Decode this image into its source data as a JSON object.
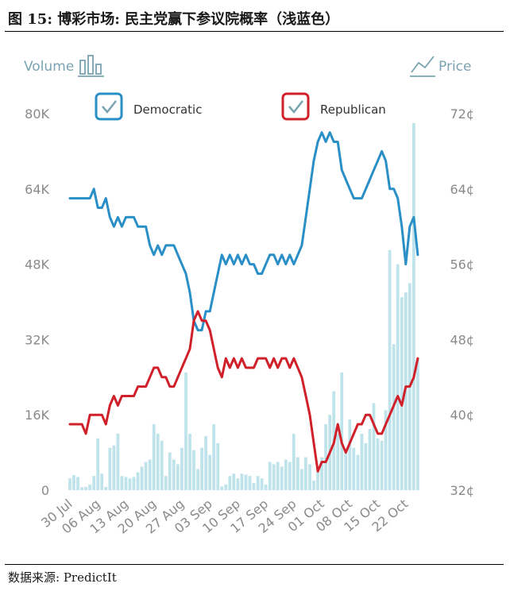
{
  "figure": {
    "title": "图 15: 博彩市场: 民主党赢下参议院概率（浅蓝色）",
    "source": "数据来源: PredictIt"
  },
  "header": {
    "volume_label": "Volume",
    "price_label": "Price",
    "volume_icon": "bar-chart-icon",
    "price_icon": "line-chart-icon"
  },
  "colors": {
    "democratic": "#2a8fc6",
    "republican": "#d0202a",
    "volume": "#bfe3ea",
    "axis_text": "#8a8a8a"
  },
  "chart_data": {
    "type": "line",
    "x_ticks": [
      "30 Jul",
      "06 Aug",
      "13 Aug",
      "20 Aug",
      "27 Aug",
      "03 Sep",
      "10 Sep",
      "17 Sep",
      "24 Sep",
      "01 Oct",
      "08 Oct",
      "15 Oct",
      "22 Oct"
    ],
    "x_range": [
      "2018-07-30",
      "2018-10-28"
    ],
    "y_left": {
      "label": "Volume",
      "ticks": [
        "0",
        "16K",
        "32K",
        "48K",
        "64K",
        "80K"
      ],
      "range": [
        0,
        80000
      ]
    },
    "y_right": {
      "label": "Price",
      "ticks": [
        "32¢",
        "40¢",
        "48¢",
        "56¢",
        "64¢",
        "72¢"
      ],
      "range": [
        32,
        72
      ]
    },
    "legend": [
      "Democratic",
      "Republican"
    ],
    "series": [
      {
        "name": "Democratic",
        "axis": "right",
        "points": [
          [
            "2018-07-30",
            63
          ],
          [
            "2018-07-31",
            63
          ],
          [
            "2018-08-01",
            63
          ],
          [
            "2018-08-02",
            63
          ],
          [
            "2018-08-03",
            63
          ],
          [
            "2018-08-04",
            63
          ],
          [
            "2018-08-05",
            64
          ],
          [
            "2018-08-06",
            62
          ],
          [
            "2018-08-07",
            62
          ],
          [
            "2018-08-08",
            63
          ],
          [
            "2018-08-09",
            61
          ],
          [
            "2018-08-10",
            60
          ],
          [
            "2018-08-11",
            61
          ],
          [
            "2018-08-12",
            60
          ],
          [
            "2018-08-13",
            61
          ],
          [
            "2018-08-14",
            61
          ],
          [
            "2018-08-15",
            61
          ],
          [
            "2018-08-16",
            60
          ],
          [
            "2018-08-17",
            60
          ],
          [
            "2018-08-18",
            60
          ],
          [
            "2018-08-19",
            58
          ],
          [
            "2018-08-20",
            57
          ],
          [
            "2018-08-21",
            58
          ],
          [
            "2018-08-22",
            57
          ],
          [
            "2018-08-23",
            58
          ],
          [
            "2018-08-24",
            58
          ],
          [
            "2018-08-25",
            58
          ],
          [
            "2018-08-26",
            57
          ],
          [
            "2018-08-27",
            56
          ],
          [
            "2018-08-28",
            55
          ],
          [
            "2018-08-29",
            53
          ],
          [
            "2018-08-30",
            50
          ],
          [
            "2018-08-31",
            49
          ],
          [
            "2018-09-01",
            49
          ],
          [
            "2018-09-02",
            51
          ],
          [
            "2018-09-03",
            51
          ],
          [
            "2018-09-04",
            53
          ],
          [
            "2018-09-05",
            55
          ],
          [
            "2018-09-06",
            57
          ],
          [
            "2018-09-07",
            56
          ],
          [
            "2018-09-08",
            57
          ],
          [
            "2018-09-09",
            56
          ],
          [
            "2018-09-10",
            57
          ],
          [
            "2018-09-11",
            56
          ],
          [
            "2018-09-12",
            57
          ],
          [
            "2018-09-13",
            56
          ],
          [
            "2018-09-14",
            56
          ],
          [
            "2018-09-15",
            55
          ],
          [
            "2018-09-16",
            55
          ],
          [
            "2018-09-17",
            56
          ],
          [
            "2018-09-18",
            57
          ],
          [
            "2018-09-19",
            57
          ],
          [
            "2018-09-20",
            56
          ],
          [
            "2018-09-21",
            57
          ],
          [
            "2018-09-22",
            56
          ],
          [
            "2018-09-23",
            57
          ],
          [
            "2018-09-24",
            56
          ],
          [
            "2018-09-25",
            57
          ],
          [
            "2018-09-26",
            58
          ],
          [
            "2018-09-27",
            61
          ],
          [
            "2018-09-28",
            64
          ],
          [
            "2018-09-29",
            67
          ],
          [
            "2018-09-30",
            69
          ],
          [
            "2018-10-01",
            70
          ],
          [
            "2018-10-02",
            69
          ],
          [
            "2018-10-03",
            70
          ],
          [
            "2018-10-04",
            69
          ],
          [
            "2018-10-05",
            69
          ],
          [
            "2018-10-06",
            66
          ],
          [
            "2018-10-07",
            65
          ],
          [
            "2018-10-08",
            64
          ],
          [
            "2018-10-09",
            63
          ],
          [
            "2018-10-10",
            63
          ],
          [
            "2018-10-11",
            63
          ],
          [
            "2018-10-12",
            64
          ],
          [
            "2018-10-13",
            65
          ],
          [
            "2018-10-14",
            66
          ],
          [
            "2018-10-15",
            67
          ],
          [
            "2018-10-16",
            68
          ],
          [
            "2018-10-17",
            67
          ],
          [
            "2018-10-18",
            64
          ],
          [
            "2018-10-19",
            64
          ],
          [
            "2018-10-20",
            63
          ],
          [
            "2018-10-21",
            60
          ],
          [
            "2018-10-22",
            56
          ],
          [
            "2018-10-23",
            60
          ],
          [
            "2018-10-24",
            61
          ],
          [
            "2018-10-25",
            57
          ]
        ]
      },
      {
        "name": "Republican",
        "axis": "right",
        "points": [
          [
            "2018-07-30",
            39
          ],
          [
            "2018-07-31",
            39
          ],
          [
            "2018-08-01",
            39
          ],
          [
            "2018-08-02",
            39
          ],
          [
            "2018-08-03",
            38
          ],
          [
            "2018-08-04",
            40
          ],
          [
            "2018-08-05",
            40
          ],
          [
            "2018-08-06",
            40
          ],
          [
            "2018-08-07",
            40
          ],
          [
            "2018-08-08",
            39
          ],
          [
            "2018-08-09",
            41
          ],
          [
            "2018-08-10",
            42
          ],
          [
            "2018-08-11",
            41
          ],
          [
            "2018-08-12",
            42
          ],
          [
            "2018-08-13",
            42
          ],
          [
            "2018-08-14",
            42
          ],
          [
            "2018-08-15",
            42
          ],
          [
            "2018-08-16",
            43
          ],
          [
            "2018-08-17",
            43
          ],
          [
            "2018-08-18",
            43
          ],
          [
            "2018-08-19",
            44
          ],
          [
            "2018-08-20",
            45
          ],
          [
            "2018-08-21",
            45
          ],
          [
            "2018-08-22",
            44
          ],
          [
            "2018-08-23",
            44
          ],
          [
            "2018-08-24",
            43
          ],
          [
            "2018-08-25",
            43
          ],
          [
            "2018-08-26",
            44
          ],
          [
            "2018-08-27",
            45
          ],
          [
            "2018-08-28",
            46
          ],
          [
            "2018-08-29",
            47
          ],
          [
            "2018-08-30",
            50
          ],
          [
            "2018-08-31",
            51
          ],
          [
            "2018-09-01",
            50
          ],
          [
            "2018-09-02",
            50
          ],
          [
            "2018-09-03",
            49
          ],
          [
            "2018-09-04",
            47
          ],
          [
            "2018-09-05",
            45
          ],
          [
            "2018-09-06",
            44
          ],
          [
            "2018-09-07",
            46
          ],
          [
            "2018-09-08",
            45
          ],
          [
            "2018-09-09",
            46
          ],
          [
            "2018-09-10",
            45
          ],
          [
            "2018-09-11",
            46
          ],
          [
            "2018-09-12",
            45
          ],
          [
            "2018-09-13",
            45
          ],
          [
            "2018-09-14",
            45
          ],
          [
            "2018-09-15",
            46
          ],
          [
            "2018-09-16",
            46
          ],
          [
            "2018-09-17",
            46
          ],
          [
            "2018-09-18",
            45
          ],
          [
            "2018-09-19",
            46
          ],
          [
            "2018-09-20",
            45
          ],
          [
            "2018-09-21",
            46
          ],
          [
            "2018-09-22",
            46
          ],
          [
            "2018-09-23",
            45
          ],
          [
            "2018-09-24",
            46
          ],
          [
            "2018-09-25",
            45
          ],
          [
            "2018-09-26",
            44
          ],
          [
            "2018-09-27",
            42
          ],
          [
            "2018-09-28",
            40
          ],
          [
            "2018-09-29",
            37
          ],
          [
            "2018-09-30",
            34
          ],
          [
            "2018-10-01",
            35
          ],
          [
            "2018-10-02",
            35
          ],
          [
            "2018-10-03",
            36
          ],
          [
            "2018-10-04",
            37
          ],
          [
            "2018-10-05",
            39
          ],
          [
            "2018-10-06",
            37
          ],
          [
            "2018-10-07",
            36
          ],
          [
            "2018-10-08",
            37
          ],
          [
            "2018-10-09",
            38
          ],
          [
            "2018-10-10",
            39
          ],
          [
            "2018-10-11",
            39
          ],
          [
            "2018-10-12",
            40
          ],
          [
            "2018-10-13",
            40
          ],
          [
            "2018-10-14",
            39
          ],
          [
            "2018-10-15",
            38
          ],
          [
            "2018-10-16",
            38
          ],
          [
            "2018-10-17",
            39
          ],
          [
            "2018-10-18",
            40
          ],
          [
            "2018-10-19",
            41
          ],
          [
            "2018-10-20",
            42
          ],
          [
            "2018-10-21",
            41
          ],
          [
            "2018-10-22",
            43
          ],
          [
            "2018-10-23",
            43
          ],
          [
            "2018-10-24",
            44
          ],
          [
            "2018-10-25",
            46
          ]
        ]
      },
      {
        "name": "Volume",
        "axis": "left",
        "points": [
          [
            "2018-07-30",
            2500
          ],
          [
            "2018-07-31",
            3200
          ],
          [
            "2018-08-01",
            2800
          ],
          [
            "2018-08-02",
            600
          ],
          [
            "2018-08-03",
            700
          ],
          [
            "2018-08-04",
            1200
          ],
          [
            "2018-08-05",
            3000
          ],
          [
            "2018-08-06",
            11000
          ],
          [
            "2018-08-07",
            3500
          ],
          [
            "2018-08-08",
            700
          ],
          [
            "2018-08-09",
            9000
          ],
          [
            "2018-08-10",
            9500
          ],
          [
            "2018-08-11",
            12000
          ],
          [
            "2018-08-12",
            3000
          ],
          [
            "2018-08-13",
            2800
          ],
          [
            "2018-08-14",
            2500
          ],
          [
            "2018-08-15",
            2800
          ],
          [
            "2018-08-16",
            3800
          ],
          [
            "2018-08-17",
            5000
          ],
          [
            "2018-08-18",
            6000
          ],
          [
            "2018-08-19",
            6500
          ],
          [
            "2018-08-20",
            14000
          ],
          [
            "2018-08-21",
            12000
          ],
          [
            "2018-08-22",
            10500
          ],
          [
            "2018-08-23",
            3000
          ],
          [
            "2018-08-24",
            8000
          ],
          [
            "2018-08-25",
            6500
          ],
          [
            "2018-08-26",
            5500
          ],
          [
            "2018-08-27",
            9000
          ],
          [
            "2018-08-28",
            25000
          ],
          [
            "2018-08-29",
            12000
          ],
          [
            "2018-08-30",
            8500
          ],
          [
            "2018-08-31",
            4500
          ],
          [
            "2018-09-01",
            9000
          ],
          [
            "2018-09-02",
            11500
          ],
          [
            "2018-09-03",
            7500
          ],
          [
            "2018-09-04",
            14000
          ],
          [
            "2018-09-05",
            10000
          ],
          [
            "2018-09-06",
            800
          ],
          [
            "2018-09-07",
            1200
          ],
          [
            "2018-09-08",
            3000
          ],
          [
            "2018-09-09",
            3500
          ],
          [
            "2018-09-10",
            2500
          ],
          [
            "2018-09-11",
            3500
          ],
          [
            "2018-09-12",
            3300
          ],
          [
            "2018-09-13",
            3000
          ],
          [
            "2018-09-14",
            1500
          ],
          [
            "2018-09-15",
            3000
          ],
          [
            "2018-09-16",
            2500
          ],
          [
            "2018-09-17",
            1200
          ],
          [
            "2018-09-18",
            6000
          ],
          [
            "2018-09-19",
            5500
          ],
          [
            "2018-09-20",
            6000
          ],
          [
            "2018-09-21",
            5000
          ],
          [
            "2018-09-22",
            6500
          ],
          [
            "2018-09-23",
            6000
          ],
          [
            "2018-09-24",
            12000
          ],
          [
            "2018-09-25",
            7000
          ],
          [
            "2018-09-26",
            4500
          ],
          [
            "2018-09-27",
            7000
          ],
          [
            "2018-09-28",
            5500
          ],
          [
            "2018-09-29",
            2000
          ],
          [
            "2018-09-30",
            4000
          ],
          [
            "2018-10-01",
            7000
          ],
          [
            "2018-10-02",
            14000
          ],
          [
            "2018-10-03",
            16000
          ],
          [
            "2018-10-04",
            21000
          ],
          [
            "2018-10-05",
            12000
          ],
          [
            "2018-10-06",
            25000
          ],
          [
            "2018-10-07",
            8000
          ],
          [
            "2018-10-08",
            15000
          ],
          [
            "2018-10-09",
            9000
          ],
          [
            "2018-10-10",
            7500
          ],
          [
            "2018-10-11",
            12000
          ],
          [
            "2018-10-12",
            10000
          ],
          [
            "2018-10-13",
            13000
          ],
          [
            "2018-10-14",
            18500
          ],
          [
            "2018-10-15",
            11000
          ],
          [
            "2018-10-16",
            10500
          ],
          [
            "2018-10-17",
            17000
          ],
          [
            "2018-10-18",
            51000
          ],
          [
            "2018-10-19",
            31000
          ],
          [
            "2018-10-20",
            48000
          ],
          [
            "2018-10-21",
            41000
          ],
          [
            "2018-10-22",
            42000
          ],
          [
            "2018-10-23",
            44000
          ],
          [
            "2018-10-24",
            78000
          ],
          [
            "2018-10-25",
            28000
          ]
        ]
      }
    ],
    "grid": false,
    "legend_position": "top"
  }
}
